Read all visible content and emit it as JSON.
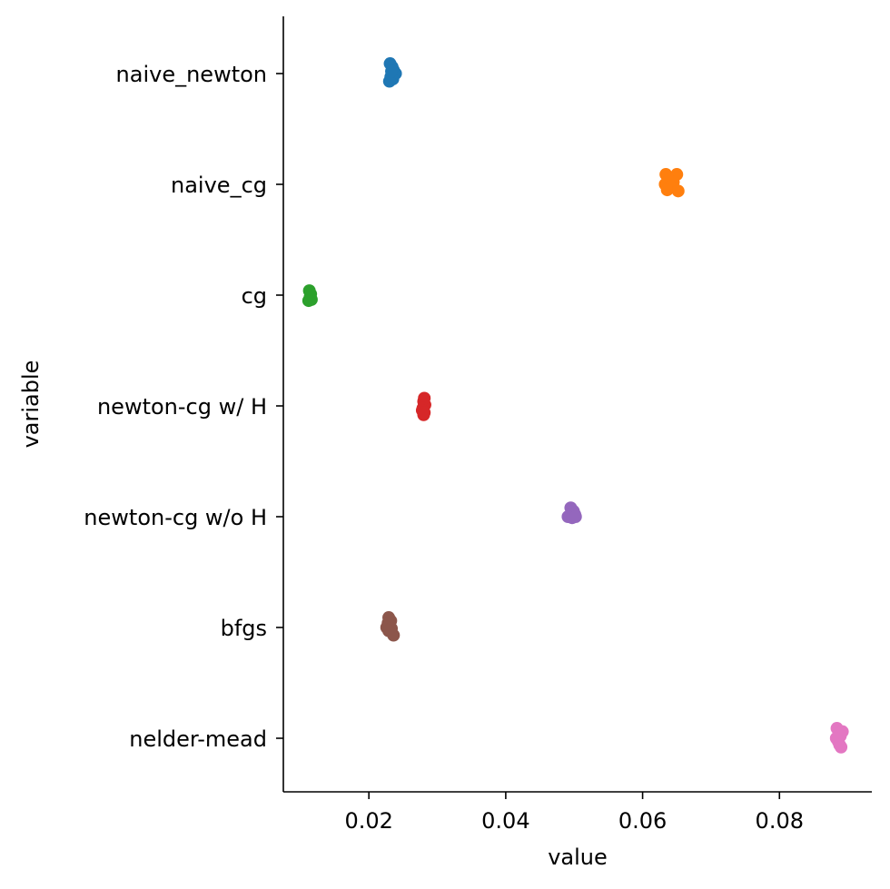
{
  "chart_data": {
    "type": "scatter",
    "title": "",
    "xlabel": "value",
    "ylabel": "variable",
    "xlim": [
      0.0075,
      0.0935
    ],
    "xticks": [
      0.02,
      0.04,
      0.06,
      0.08
    ],
    "xtick_labels": [
      "0.02",
      "0.04",
      "0.06",
      "0.08"
    ],
    "grid": false,
    "legend": "none",
    "categories": [
      "naive_newton",
      "naive_cg",
      "cg",
      "newton-cg w/ H",
      "newton-cg w/o H",
      "bfgs",
      "nelder-mead"
    ],
    "colors": [
      "#1f77b4",
      "#ff7f0e",
      "#2ca02c",
      "#d62728",
      "#9467bd",
      "#8c564b",
      "#e377c2"
    ],
    "points": [
      [
        [
          0.0231,
          -0.09
        ],
        [
          0.0234,
          -0.06
        ],
        [
          0.0236,
          -0.03
        ],
        [
          0.0239,
          0.0
        ],
        [
          0.0232,
          0.03
        ],
        [
          0.0235,
          0.05
        ],
        [
          0.023,
          0.07
        ],
        [
          0.0233,
          -0.02
        ]
      ],
      [
        [
          0.0634,
          -0.09
        ],
        [
          0.065,
          -0.09
        ],
        [
          0.0638,
          -0.04
        ],
        [
          0.0645,
          -0.02
        ],
        [
          0.0633,
          0.0
        ],
        [
          0.0641,
          0.02
        ],
        [
          0.0636,
          0.05
        ],
        [
          0.0652,
          0.06
        ]
      ],
      [
        [
          0.0113,
          -0.04
        ],
        [
          0.0115,
          -0.01
        ],
        [
          0.0114,
          0.02
        ],
        [
          0.0116,
          0.04
        ],
        [
          0.0112,
          0.05
        ]
      ],
      [
        [
          0.0281,
          -0.07
        ],
        [
          0.028,
          -0.04
        ],
        [
          0.0282,
          -0.01
        ],
        [
          0.0279,
          0.02
        ],
        [
          0.0278,
          0.04
        ],
        [
          0.0281,
          0.06
        ],
        [
          0.028,
          0.08
        ]
      ],
      [
        [
          0.0495,
          -0.08
        ],
        [
          0.0499,
          -0.05
        ],
        [
          0.0501,
          -0.02
        ],
        [
          0.0491,
          0.0
        ],
        [
          0.0497,
          0.01
        ],
        [
          0.0502,
          0.0
        ]
      ],
      [
        [
          0.0229,
          -0.09
        ],
        [
          0.0232,
          -0.06
        ],
        [
          0.0228,
          -0.04
        ],
        [
          0.023,
          -0.02
        ],
        [
          0.0226,
          0.0
        ],
        [
          0.0233,
          0.01
        ],
        [
          0.0229,
          0.03
        ],
        [
          0.0236,
          0.07
        ]
      ],
      [
        [
          0.0884,
          -0.09
        ],
        [
          0.0892,
          -0.06
        ],
        [
          0.0887,
          -0.04
        ],
        [
          0.0889,
          -0.02
        ],
        [
          0.0883,
          0.0
        ],
        [
          0.0886,
          0.03
        ],
        [
          0.0888,
          0.06
        ],
        [
          0.089,
          0.08
        ]
      ]
    ]
  }
}
